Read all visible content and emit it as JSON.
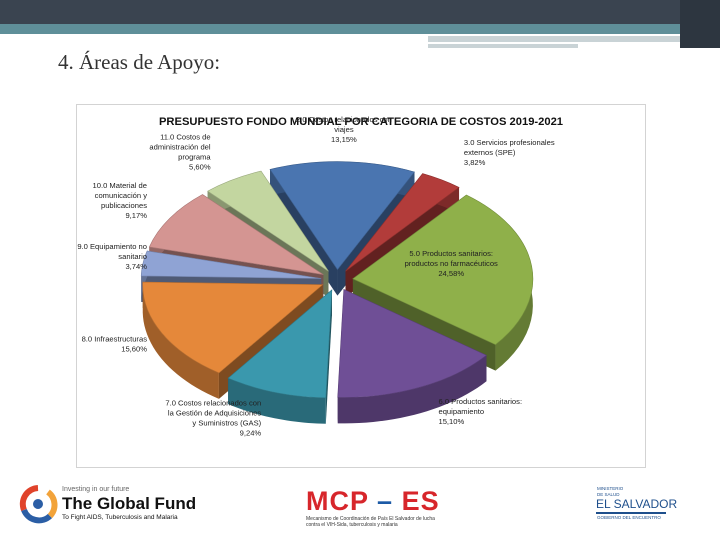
{
  "slide": {
    "title": "4. Áreas de Apoyo:"
  },
  "chart_data": {
    "type": "pie",
    "title": "PRESUPUESTO FONDO MUNDIAL POR CATEGORIA DE COSTOS 2019-2021",
    "series": [
      {
        "label": [
          "2.0 Costos relacionados con",
          "viajes"
        ],
        "value_label": "13,15%",
        "value": 13.15,
        "color": "#4a75b0"
      },
      {
        "label": [
          "3.0 Servicios profesionales",
          "externos (SPE)"
        ],
        "value_label": "3,82%",
        "value": 3.82,
        "color": "#b23c3a"
      },
      {
        "label": [
          "5.0 Productos sanitarios:",
          "productos no farmacéuticos"
        ],
        "value_label": "24,58%",
        "value": 24.58,
        "color": "#8fb04a"
      },
      {
        "label": [
          "6.0 Productos sanitarios:",
          "equipamiento"
        ],
        "value_label": "15,10%",
        "value": 15.1,
        "color": "#6f4f96"
      },
      {
        "label": [
          "7.0 Costos relacionados con",
          "la Gestión de Adquisiciones",
          "y Suministros (GAS)"
        ],
        "value_label": "9,24%",
        "value": 9.24,
        "color": "#3a98ad"
      },
      {
        "label": [
          "8.0 Infraestructuras"
        ],
        "value_label": "15,60%",
        "value": 15.6,
        "color": "#e5883a"
      },
      {
        "label": [
          "9.0 Equipamiento no",
          "sanitario"
        ],
        "value_label": "3,74%",
        "value": 3.74,
        "color": "#8fa3d4"
      },
      {
        "label": [
          "10.0 Material de",
          "comunicación y",
          "publicaciones"
        ],
        "value_label": "9,17%",
        "value": 9.17,
        "color": "#d49592"
      },
      {
        "label": [
          "11.0 Costos de",
          "administración del",
          "programa"
        ],
        "value_label": "5,60%",
        "value": 5.6,
        "color": "#c3d6a0"
      }
    ],
    "legend": "none (slice labels)",
    "style": "3d-exploded"
  },
  "footer": {
    "global_fund": {
      "small": "Investing in our future",
      "name": "The Global Fund",
      "tagline": "To Fight AIDS, Tuberculosis and Malaria"
    },
    "mcp": {
      "mcp": "MCP",
      "dash": "–",
      "es": "ES",
      "tagline": "Mecanismo de Coordinación de País El Salvador de lucha contra el VIH-Sida, tuberculosis y malaria"
    },
    "el_salvador": {
      "small1": "MINISTERIO",
      "small2": "DE SALUD",
      "name": "EL SALVADOR",
      "small3": "GOBIERNO DEL ENCUENTRO"
    },
    "colors": {
      "mcp_red": "#d7262b",
      "mcp_blue": "#1c5aa6",
      "gf_red": "#e0432b",
      "gf_blue": "#2b5ea5",
      "els_blue": "#1e4f8c"
    }
  }
}
